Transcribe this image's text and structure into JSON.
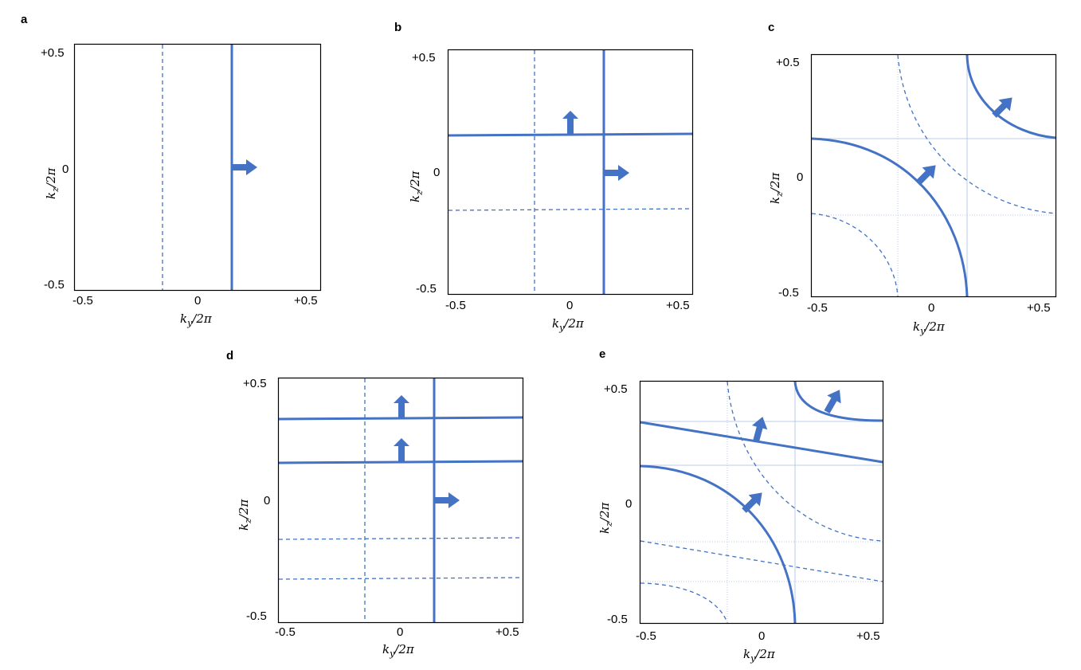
{
  "colors": {
    "line": "#4472C4",
    "frame": "#000000",
    "grid": "#A9BDE6"
  },
  "axis_text": {
    "xlabel_base": "k",
    "xlabel_sub": "y",
    "ylabel_base": "k",
    "ylabel_sub": "z",
    "label_denominator": "/2π"
  },
  "ticks": {
    "x_min": "-0.5",
    "x_mid": "0",
    "x_max": "+0.5",
    "y_min": "-0.5",
    "y_mid": "0",
    "y_max": "+0.5"
  },
  "panels": {
    "a": {
      "letter": "a"
    },
    "b": {
      "letter": "b"
    },
    "c": {
      "letter": "c"
    },
    "d": {
      "letter": "d"
    },
    "e": {
      "letter": "e"
    }
  }
}
